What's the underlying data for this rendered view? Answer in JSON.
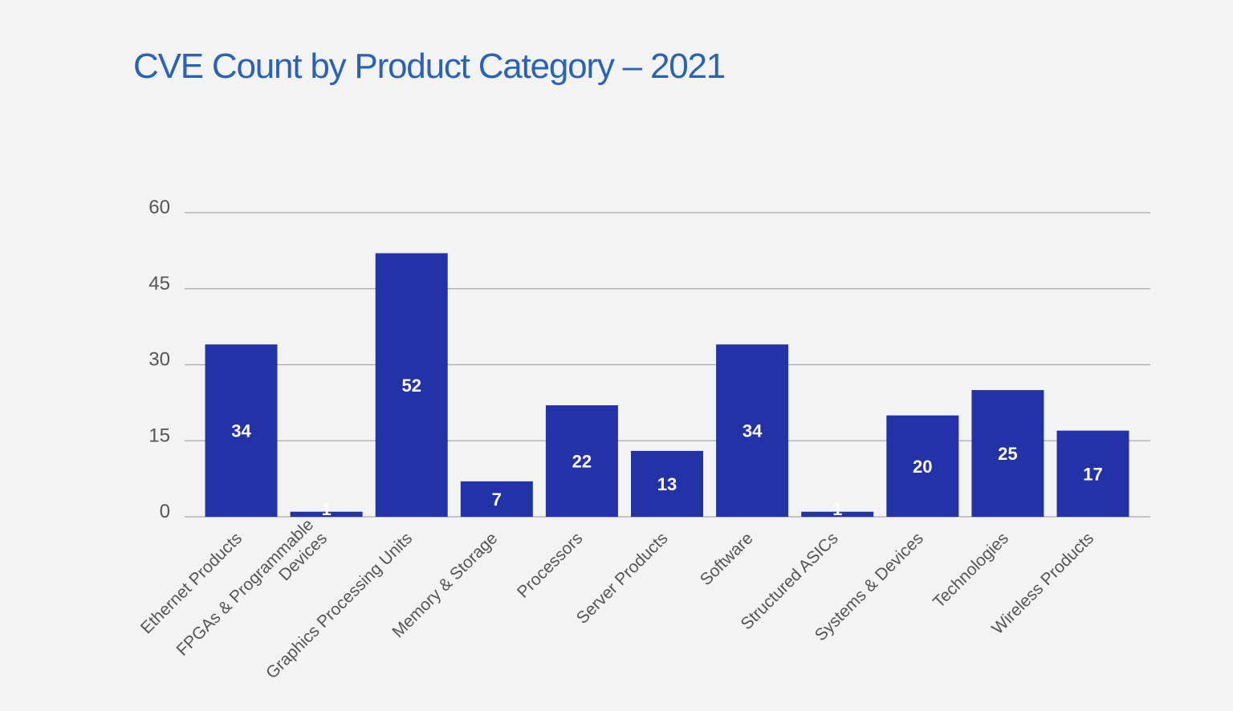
{
  "chart_data": {
    "type": "bar",
    "title": "CVE Count by Product Category – 2021",
    "xlabel": "",
    "ylabel": "",
    "ylim": [
      0,
      60
    ],
    "yticks": [
      0,
      15,
      30,
      45,
      60
    ],
    "grid": true,
    "legend": "none",
    "bar_color": "#2432a8",
    "title_color": "#2a62b4",
    "categories": [
      "Ethernet Products",
      "FPGAs & Programmable Devices",
      "Graphics Processing Units",
      "Memory & Storage",
      "Processors",
      "Server Products",
      "Software",
      "Structured ASICs",
      "Systems & Devices",
      "Technologies",
      "Wireless Products"
    ],
    "category_label_lines": [
      [
        "Ethernet Products"
      ],
      [
        "FPGAs & Programmable",
        "Devices"
      ],
      [
        "Graphics Processing Units"
      ],
      [
        "Memory & Storage"
      ],
      [
        "Processors"
      ],
      [
        "Server Products"
      ],
      [
        "Software"
      ],
      [
        "Structured ASICs"
      ],
      [
        "Systems & Devices"
      ],
      [
        "Technologies"
      ],
      [
        "Wireless Products"
      ]
    ],
    "values": [
      34,
      1,
      52,
      7,
      22,
      13,
      34,
      1,
      20,
      25,
      17
    ],
    "data_labels": [
      "34",
      "1",
      "52",
      "7",
      "22",
      "13",
      "34",
      "1",
      "20",
      "25",
      "17"
    ]
  }
}
